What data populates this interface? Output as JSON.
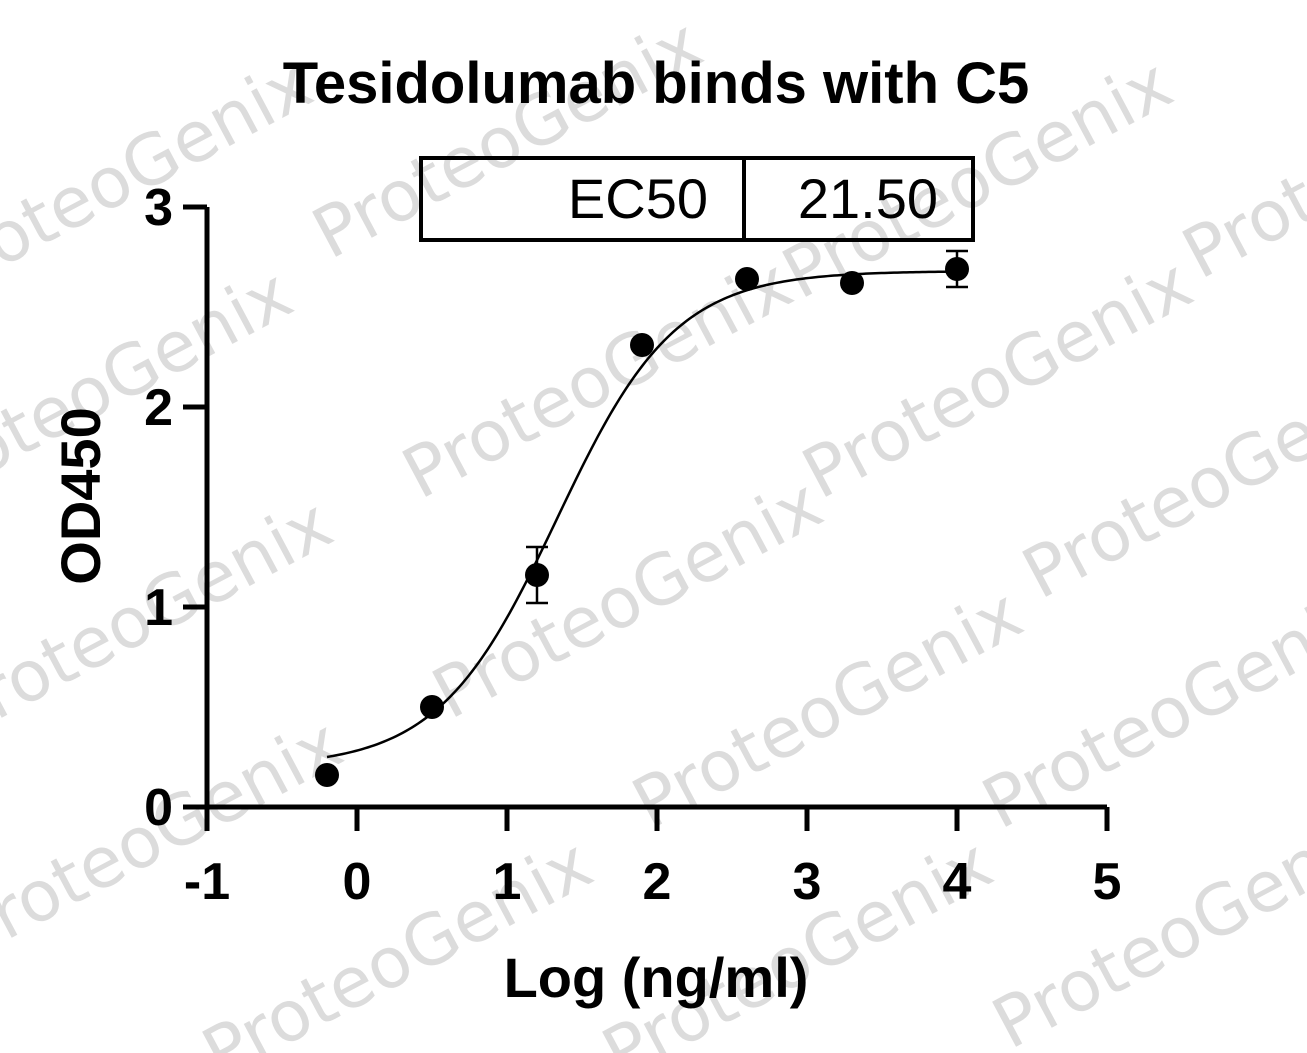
{
  "watermark": "ProteoGenix",
  "chart_data": {
    "type": "scatter",
    "title": "Tesidolumab binds with C5",
    "xlabel": "Log (ng/ml)",
    "ylabel": "OD450",
    "xlim": [
      -1,
      5
    ],
    "ylim": [
      0,
      3
    ],
    "xticks": [
      "-1",
      "0",
      "1",
      "2",
      "3",
      "4",
      "5"
    ],
    "yticks": [
      "0",
      "1",
      "2",
      "3"
    ],
    "grid": false,
    "legend": "none",
    "annotation_table": {
      "label": "EC50",
      "value": "21.50"
    },
    "points": [
      {
        "x": -0.2,
        "y": 0.16,
        "err": 0
      },
      {
        "x": 0.5,
        "y": 0.5,
        "err": 0
      },
      {
        "x": 1.2,
        "y": 1.16,
        "err": 0.14
      },
      {
        "x": 1.9,
        "y": 2.31,
        "err": 0
      },
      {
        "x": 2.6,
        "y": 2.64,
        "err": 0
      },
      {
        "x": 3.3,
        "y": 2.62,
        "err": 0
      },
      {
        "x": 4.0,
        "y": 2.69,
        "err": 0.09
      }
    ],
    "fit_curve": {
      "model": "4PL",
      "bottom": 0.2,
      "top": 2.68,
      "logEC50": 1.3324,
      "hill": 1.1,
      "x_range": [
        -0.2,
        4.0
      ]
    },
    "colors": {
      "points": "#000000",
      "curve": "#000000",
      "watermark": "#dcdcdc"
    }
  }
}
